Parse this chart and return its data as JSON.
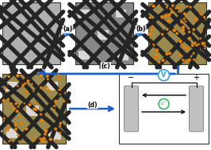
{
  "fiber_color": "#252525",
  "sulfur_color": "#e8850a",
  "arrow_color": "#1a5fcc",
  "box_border": "#333333",
  "label_a": "(a)",
  "label_b": "(b)",
  "label_c": "(c)",
  "label_d": "(d)",
  "volt_color": "#30a0e0",
  "li_color": "#30c060",
  "panel1_bg": "#b0b0b0",
  "panel2_bg": "#888888",
  "panel3_bg": "#9a8a50",
  "panel4_bg": "#9a8a50",
  "ec_bg": "#ffffff",
  "electrode_color": "#c0c0c0",
  "electrode_edge": "#888888"
}
